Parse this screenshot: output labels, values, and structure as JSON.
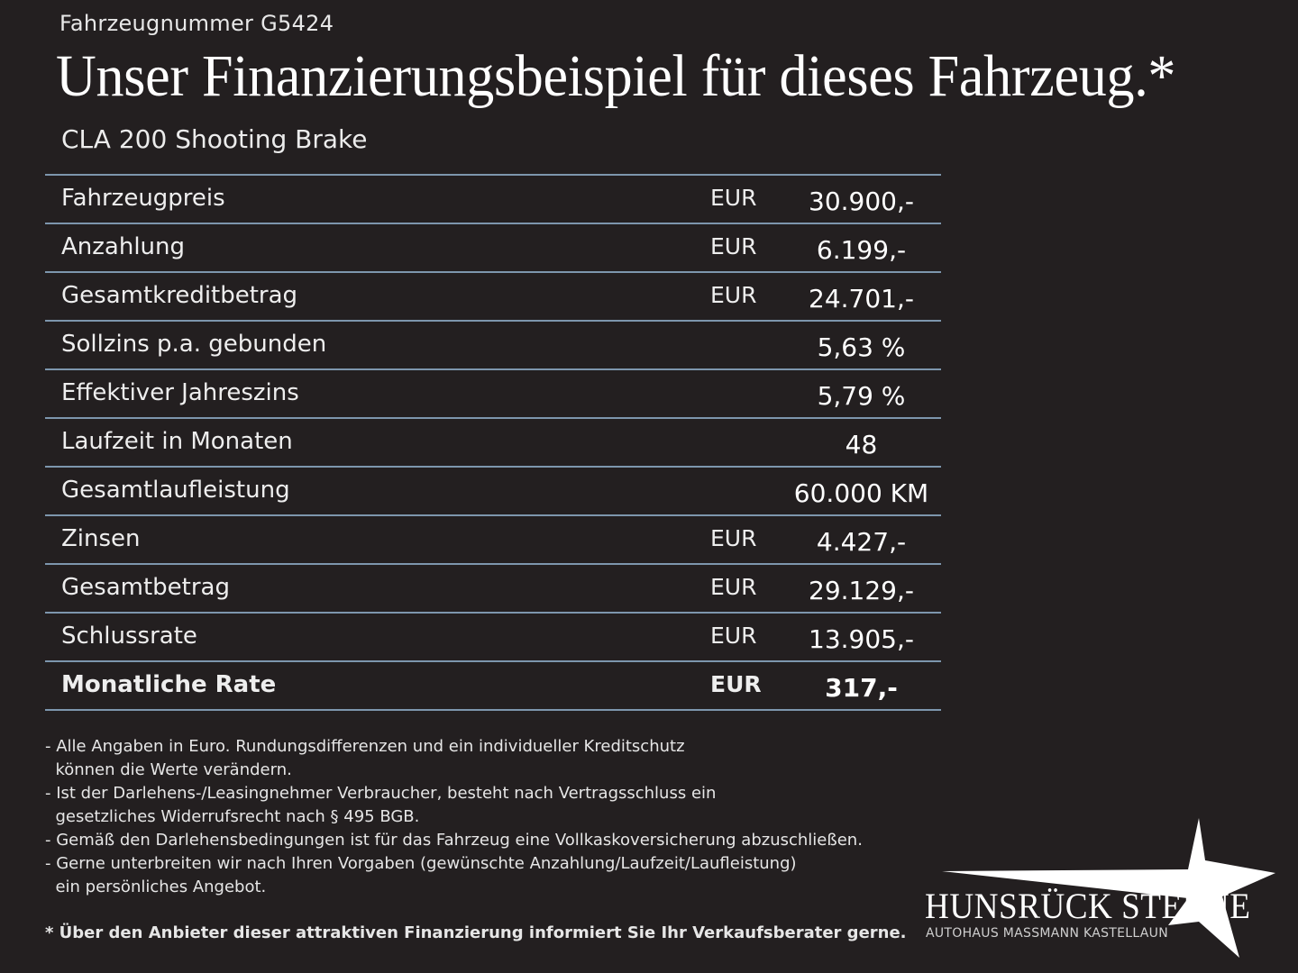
{
  "header": {
    "vehicle_number": "Fahrzeugnummer G5424",
    "headline": "Unser Finanzierungsbeispiel für dieses Fahrzeug.*",
    "model": "CLA 200 Shooting Brake"
  },
  "table": {
    "rows": [
      {
        "label": "Fahrzeugpreis",
        "currency": "EUR",
        "value": "30.900,-"
      },
      {
        "label": "Anzahlung",
        "currency": "EUR",
        "value": "6.199,-"
      },
      {
        "label": "Gesamtkreditbetrag",
        "currency": "EUR",
        "value": "24.701,-"
      },
      {
        "label": "Sollzins p.a. gebunden",
        "currency": "",
        "value": "5,63 %"
      },
      {
        "label": "Effektiver Jahreszins",
        "currency": "",
        "value": "5,79 %"
      },
      {
        "label": "Laufzeit in Monaten",
        "currency": "",
        "value": "48"
      },
      {
        "label": "Gesamtlaufleistung",
        "currency": "",
        "value": "60.000 KM"
      },
      {
        "label": "Zinsen",
        "currency": "EUR",
        "value": "4.427,-"
      },
      {
        "label": "Gesamtbetrag",
        "currency": "EUR",
        "value": "29.129,-"
      },
      {
        "label": "Schlussrate",
        "currency": "EUR",
        "value": "13.905,-"
      },
      {
        "label": "Monatliche Rate",
        "currency": "EUR",
        "value": "317,-"
      }
    ]
  },
  "notes": [
    "- Alle Angaben in Euro. Rundungsdifferenzen und ein individueller Kreditschutz",
    "  können die Werte verändern.",
    "- Ist der Darlehens-/Leasingnehmer Verbraucher, besteht nach Vertragsschluss ein",
    "  gesetzliches Widerrufsrecht nach § 495 BGB.",
    "- Gemäß den Darlehensbedingungen ist für das Fahrzeug eine Vollkaskoversicherung abzuschließen.",
    "- Gerne unterbreiten wir nach Ihren Vorgaben (gewünschte Anzahlung/Laufzeit/Laufleistung)",
    "  ein persönliches Angebot."
  ],
  "footnote": "* Über den Anbieter dieser attraktiven Finanzierung informiert Sie Ihr Verkaufsberater gerne.",
  "brand": {
    "name": "HUNSRÜCK STERNE",
    "subline": "AUTOHAUS MASSMANN KASTELLAUN",
    "logo_icon": "star-icon"
  },
  "colors": {
    "background": "#231f20",
    "divider": "#7d96ad",
    "text": "#ffffff"
  }
}
